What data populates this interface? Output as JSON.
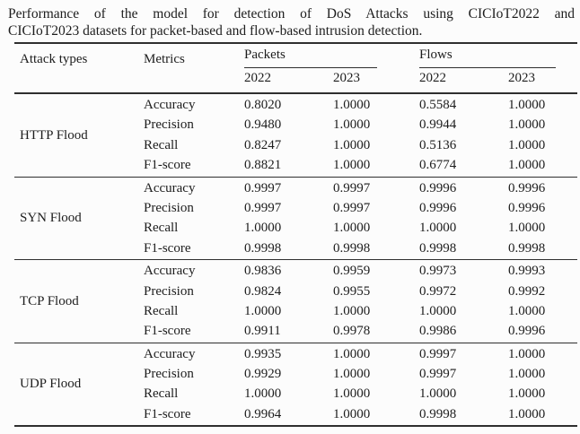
{
  "caption": {
    "line1": "Performance of the model for detection of DoS Attacks using CICIoT2022 and",
    "line2": "CICIoT2023 datasets for packet-based and flow-based intrusion detection."
  },
  "table": {
    "header": {
      "attack_types": "Attack types",
      "metrics": "Metrics",
      "packets": "Packets",
      "flows": "Flows",
      "packets_years": [
        "2022",
        "2023"
      ],
      "flows_years": [
        "2022",
        "2023"
      ]
    },
    "groups": [
      {
        "attack_type": "HTTP Flood",
        "rows": [
          {
            "metric": "Accuracy",
            "values": [
              "0.8020",
              "1.0000",
              "0.5584",
              "1.0000"
            ]
          },
          {
            "metric": "Precision",
            "values": [
              "0.9480",
              "1.0000",
              "0.9944",
              "1.0000"
            ]
          },
          {
            "metric": "Recall",
            "values": [
              "0.8247",
              "1.0000",
              "0.5136",
              "1.0000"
            ]
          },
          {
            "metric": "F1-score",
            "values": [
              "0.8821",
              "1.0000",
              "0.6774",
              "1.0000"
            ]
          }
        ]
      },
      {
        "attack_type": "SYN Flood",
        "rows": [
          {
            "metric": "Accuracy",
            "values": [
              "0.9997",
              "0.9997",
              "0.9996",
              "0.9996"
            ]
          },
          {
            "metric": "Precision",
            "values": [
              "0.9997",
              "0.9997",
              "0.9996",
              "0.9996"
            ]
          },
          {
            "metric": "Recall",
            "values": [
              "1.0000",
              "1.0000",
              "1.0000",
              "1.0000"
            ]
          },
          {
            "metric": "F1-score",
            "values": [
              "0.9998",
              "0.9998",
              "0.9998",
              "0.9998"
            ]
          }
        ]
      },
      {
        "attack_type": "TCP Flood",
        "rows": [
          {
            "metric": "Accuracy",
            "values": [
              "0.9836",
              "0.9959",
              "0.9973",
              "0.9993"
            ]
          },
          {
            "metric": "Precision",
            "values": [
              "0.9824",
              "0.9955",
              "0.9972",
              "0.9992"
            ]
          },
          {
            "metric": "Recall",
            "values": [
              "1.0000",
              "1.0000",
              "1.0000",
              "1.0000"
            ]
          },
          {
            "metric": "F1-score",
            "values": [
              "0.9911",
              "0.9978",
              "0.9986",
              "0.9996"
            ]
          }
        ]
      },
      {
        "attack_type": "UDP Flood",
        "rows": [
          {
            "metric": "Accuracy",
            "values": [
              "0.9935",
              "1.0000",
              "0.9997",
              "1.0000"
            ]
          },
          {
            "metric": "Precision",
            "values": [
              "0.9929",
              "1.0000",
              "0.9997",
              "1.0000"
            ]
          },
          {
            "metric": "Recall",
            "values": [
              "1.0000",
              "1.0000",
              "1.0000",
              "1.0000"
            ]
          },
          {
            "metric": "F1-score",
            "values": [
              "0.9964",
              "1.0000",
              "0.9998",
              "1.0000"
            ]
          }
        ]
      }
    ]
  },
  "colors": {
    "background": "#fcfcfc",
    "text": "#1d1d1d",
    "rule": "#2f2f2f"
  }
}
